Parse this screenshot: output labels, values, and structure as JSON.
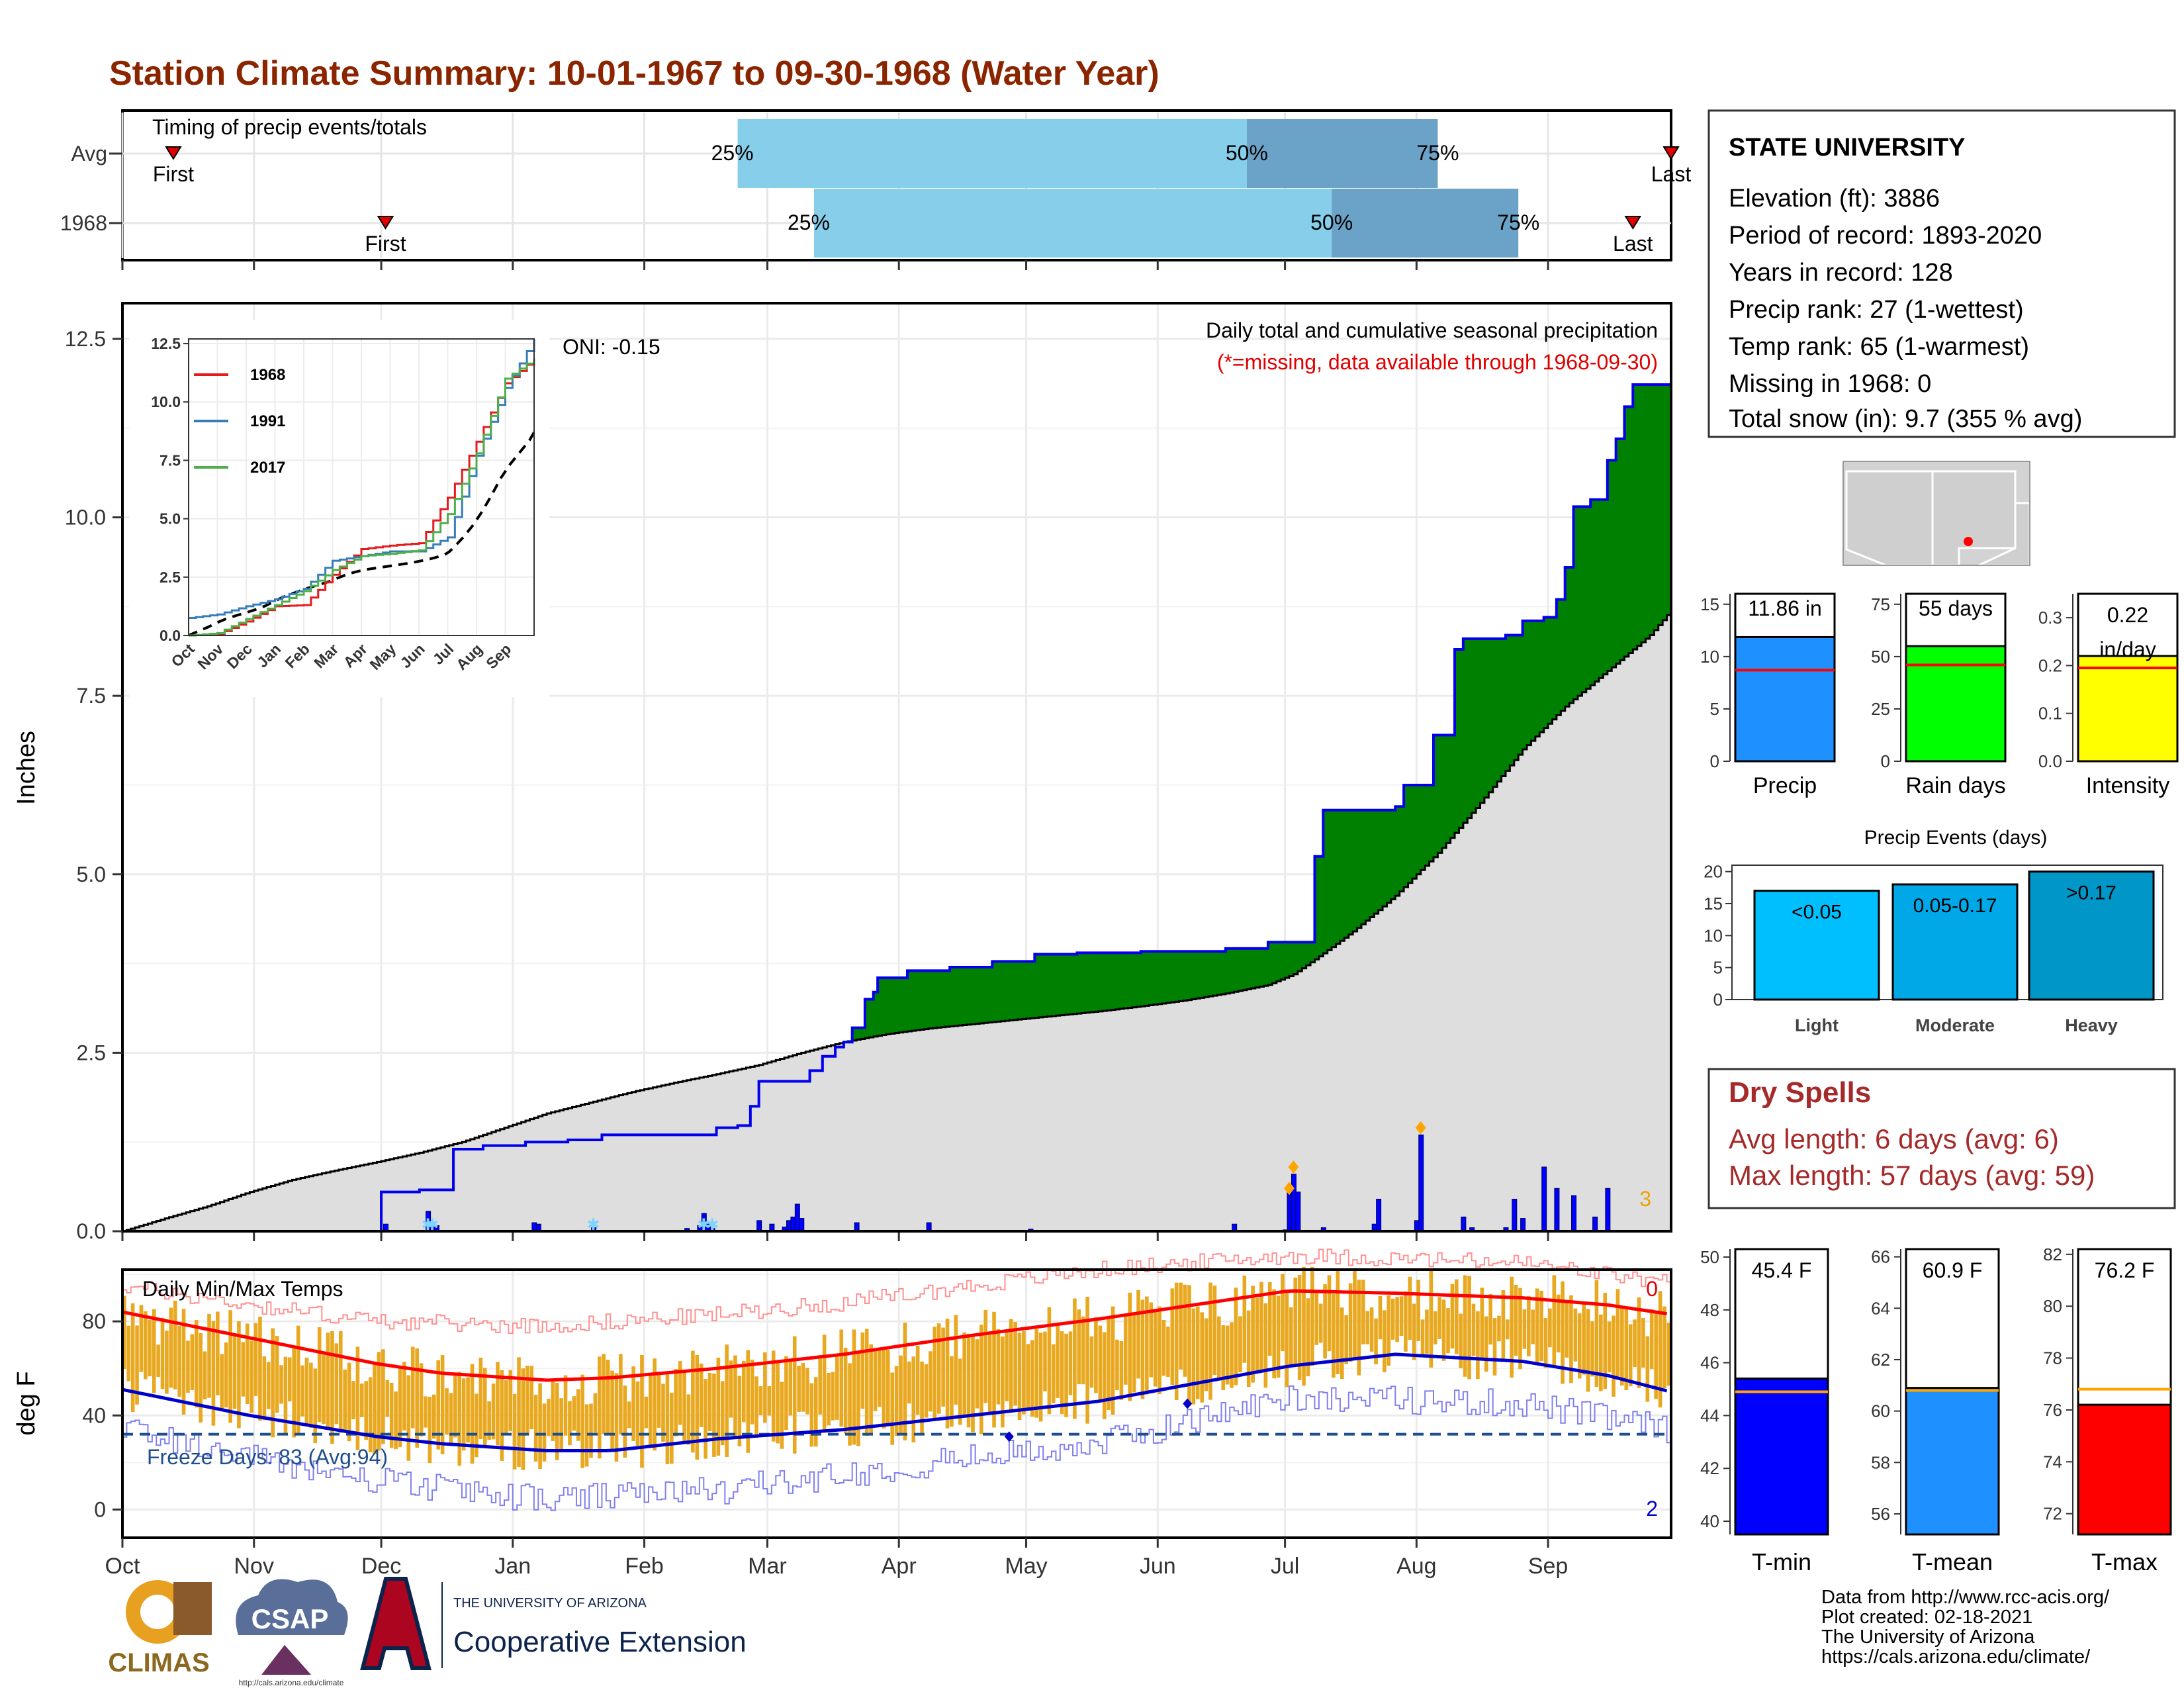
{
  "title": "Station Climate Summary: 10-01-1967 to 09-30-1968 (Water Year)",
  "colors": {
    "title": "#8b2500",
    "deficit": "#7f5200",
    "surplus": "#008000",
    "avg_fill": "#dedede",
    "daily_bars": "#0000ff",
    "temp_bars": "#e8a820",
    "tmax_line": "#ff0000",
    "tmin_line": "#0000cc",
    "timing_light": "#87ceeb",
    "timing_dark": "#6ba3c8",
    "dry_spells": "#a52a2a",
    "precip_bar": "#1e90ff",
    "rain_days_bar": "#00ff00",
    "intensity_bar": "#ffff00",
    "events_light": "#00bfff",
    "events_moderate": "#00a8e8",
    "events_heavy": "#0096c8",
    "tmin_bar": "#0000ff",
    "tmean_bar": "#1e90ff",
    "tmax_bar": "#ff0000",
    "avg_marker_precip": "#ff0000",
    "avg_marker_temp": "#ffa500"
  },
  "months": [
    "Oct",
    "Nov",
    "Dec",
    "Jan",
    "Feb",
    "Mar",
    "Apr",
    "May",
    "Jun",
    "Jul",
    "Aug",
    "Sep"
  ],
  "timing": {
    "caption": "Timing of precip events/totals",
    "rows": [
      {
        "label": "Avg",
        "first_day": 12,
        "p25_day": 145,
        "p50_day": 265,
        "p75_day": 310,
        "last_day": 365,
        "first_label": "First",
        "last_label": "Last",
        "p25_label": "25%",
        "p50_label": "50%",
        "p75_label": "75%"
      },
      {
        "label": "1968",
        "first_day": 62,
        "p25_day": 163,
        "p50_day": 285,
        "p75_day": 329,
        "last_day": 356,
        "first_label": "First",
        "last_label": "Last",
        "p25_label": "25%",
        "p50_label": "50%",
        "p75_label": "75%"
      }
    ]
  },
  "precip_panel": {
    "ylabel": "Inches",
    "y_ticks": [
      "0.0",
      "2.5",
      "5.0",
      "7.5",
      "10.0",
      "12.5"
    ],
    "ylim": [
      0,
      13
    ],
    "legend_title": "Daily total and cumulative seasonal precipitation",
    "legend_note": "(*=missing, data available through 1968-09-30)",
    "oni": "ONI: -0.15",
    "missing_count": "3"
  },
  "inset": {
    "y_ticks": [
      "0.0",
      "2.5",
      "5.0",
      "7.5",
      "10.0",
      "12.5"
    ],
    "x_ticks": [
      "Oct",
      "Nov",
      "Dec",
      "Jan",
      "Feb",
      "Mar",
      "Apr",
      "May",
      "Jun",
      "Jul",
      "Aug",
      "Sep"
    ],
    "legend": [
      {
        "label": "1968",
        "color": "#e41a1c"
      },
      {
        "label": "1991",
        "color": "#377eb8"
      },
      {
        "label": "2017",
        "color": "#4daf4a"
      }
    ]
  },
  "temp_panel": {
    "ylabel": "deg F",
    "caption": "Daily Min/Max Temps",
    "y_ticks": [
      "0",
      "40",
      "80"
    ],
    "ylim": [
      -12,
      102
    ],
    "freeze_label": "Freeze Days: 83 (Avg:94)",
    "freeze_line": 32,
    "record_high_count": "0",
    "record_low_count": "2"
  },
  "station": {
    "name": "STATE UNIVERSITY",
    "lines": [
      "Elevation (ft): 3886",
      "Period of record: 1893-2020",
      "Years in record: 128",
      "Precip rank: 27 (1-wettest)",
      "Temp rank: 65 (1-warmest)",
      "Missing in 1968: 0",
      "Total snow (in): 9.7 (355 % avg)"
    ]
  },
  "summary_bars": [
    {
      "label": "Precip",
      "value": 11.86,
      "avg": 8.7,
      "value_label": "11.86 in",
      "ylim": [
        0,
        16
      ],
      "ticks": [
        "0",
        "5",
        "10",
        "15"
      ],
      "tick_vals": [
        0,
        5,
        10,
        15
      ]
    },
    {
      "label": "Rain days",
      "value": 55,
      "avg": 46,
      "value_label": "55 days",
      "ylim": [
        0,
        80
      ],
      "ticks": [
        "0",
        "25",
        "50",
        "75"
      ],
      "tick_vals": [
        0,
        25,
        50,
        75
      ]
    },
    {
      "label": "Intensity",
      "value": 0.22,
      "avg": 0.195,
      "value_label": "0.22 in/day",
      "ylim": [
        0,
        0.35
      ],
      "ticks": [
        "0.0",
        "0.1",
        "0.2",
        "0.3"
      ],
      "tick_vals": [
        0,
        0.1,
        0.2,
        0.3
      ]
    }
  ],
  "events": {
    "title": "Precip Events (days)",
    "ylim": [
      0,
      21
    ],
    "ticks": [
      "0",
      "5",
      "10",
      "15",
      "20"
    ],
    "bars": [
      {
        "label": "Light",
        "value": 17,
        "value_label": "<0.05"
      },
      {
        "label": "Moderate",
        "value": 18,
        "value_label": "0.05-0.17"
      },
      {
        "label": "Heavy",
        "value": 20,
        "value_label": ">0.17"
      }
    ]
  },
  "dry_spells": {
    "title": "Dry Spells",
    "avg_line": "Avg length: 6 days (avg: 6)",
    "max_line": "Max length: 57 days (avg: 59)"
  },
  "temp_bars": [
    {
      "label": "T-min",
      "value": 45.4,
      "avg": 44.9,
      "value_label": "45.4 F",
      "ylim": [
        39.5,
        50.3
      ],
      "ticks": [
        "40",
        "42",
        "44",
        "46",
        "48",
        "50"
      ],
      "tick_vals": [
        40,
        42,
        44,
        46,
        48,
        50
      ]
    },
    {
      "label": "T-mean",
      "value": 60.9,
      "avg": 60.8,
      "value_label": "60.9 F",
      "ylim": [
        55.2,
        66.3
      ],
      "ticks": [
        "56",
        "58",
        "60",
        "62",
        "64",
        "66"
      ],
      "tick_vals": [
        56,
        58,
        60,
        62,
        64,
        66
      ]
    },
    {
      "label": "T-max",
      "value": 76.2,
      "avg": 76.8,
      "value_label": "76.2 F",
      "ylim": [
        71.2,
        82.2
      ],
      "ticks": [
        "72",
        "74",
        "76",
        "78",
        "80",
        "82"
      ],
      "tick_vals": [
        72,
        74,
        76,
        78,
        80,
        82
      ]
    }
  ],
  "footer": {
    "lines": [
      "Data from http://www.rcc-acis.org/",
      "Plot created: 02-18-2021",
      "The University of Arizona",
      "https://cals.arizona.edu/climate/"
    ],
    "climas": "CLIMAS",
    "csap": "CSAP",
    "csap_url": "http://cals.arizona.edu/climate",
    "ua_top": "THE UNIVERSITY OF ARIZONA",
    "ua_bottom": "Cooperative Extension"
  },
  "chart_data": [
    {
      "type": "area",
      "name": "cumulative precip",
      "x_unit": "day of water year (0 = Oct 1)",
      "y_unit": "inches",
      "observed_cumulative": [
        [
          0,
          0
        ],
        [
          61,
          0.55
        ],
        [
          70,
          0.58
        ],
        [
          78,
          1.15
        ],
        [
          85,
          1.2
        ],
        [
          95,
          1.25
        ],
        [
          105,
          1.28
        ],
        [
          113,
          1.35
        ],
        [
          125,
          1.35
        ],
        [
          140,
          1.45
        ],
        [
          145,
          1.48
        ],
        [
          148,
          1.75
        ],
        [
          150,
          2.1
        ],
        [
          162,
          2.25
        ],
        [
          165,
          2.45
        ],
        [
          168,
          2.58
        ],
        [
          170,
          2.65
        ],
        [
          172,
          2.85
        ],
        [
          175,
          3.25
        ],
        [
          177,
          3.35
        ],
        [
          178,
          3.55
        ],
        [
          185,
          3.65
        ],
        [
          195,
          3.7
        ],
        [
          205,
          3.78
        ],
        [
          215,
          3.88
        ],
        [
          225,
          3.9
        ],
        [
          240,
          3.92
        ],
        [
          260,
          3.96
        ],
        [
          270,
          4.05
        ],
        [
          276,
          4.05
        ],
        [
          281,
          5.25
        ],
        [
          283,
          5.9
        ],
        [
          290,
          5.9
        ],
        [
          300,
          5.95
        ],
        [
          302,
          6.25
        ],
        [
          309,
          6.95
        ],
        [
          314,
          8.15
        ],
        [
          316,
          8.3
        ],
        [
          322,
          8.3
        ],
        [
          326,
          8.35
        ],
        [
          330,
          8.55
        ],
        [
          335,
          8.6
        ],
        [
          338,
          8.85
        ],
        [
          340,
          9.3
        ],
        [
          342,
          10.15
        ],
        [
          346,
          10.25
        ],
        [
          350,
          10.8
        ],
        [
          352,
          11.1
        ],
        [
          354,
          11.55
        ],
        [
          356,
          11.86
        ],
        [
          365,
          11.86
        ]
      ],
      "avg_cumulative": [
        [
          0,
          0
        ],
        [
          10,
          0.18
        ],
        [
          20,
          0.35
        ],
        [
          30,
          0.55
        ],
        [
          40,
          0.72
        ],
        [
          50,
          0.85
        ],
        [
          60,
          0.97
        ],
        [
          70,
          1.1
        ],
        [
          80,
          1.25
        ],
        [
          90,
          1.45
        ],
        [
          100,
          1.65
        ],
        [
          110,
          1.8
        ],
        [
          120,
          1.95
        ],
        [
          130,
          2.08
        ],
        [
          140,
          2.2
        ],
        [
          150,
          2.33
        ],
        [
          160,
          2.5
        ],
        [
          170,
          2.65
        ],
        [
          180,
          2.76
        ],
        [
          190,
          2.84
        ],
        [
          200,
          2.9
        ],
        [
          210,
          2.96
        ],
        [
          220,
          3.02
        ],
        [
          230,
          3.08
        ],
        [
          240,
          3.15
        ],
        [
          250,
          3.23
        ],
        [
          260,
          3.33
        ],
        [
          270,
          3.45
        ],
        [
          276,
          3.6
        ],
        [
          282,
          3.85
        ],
        [
          290,
          4.2
        ],
        [
          300,
          4.7
        ],
        [
          310,
          5.3
        ],
        [
          320,
          6.0
        ],
        [
          330,
          6.75
        ],
        [
          340,
          7.35
        ],
        [
          350,
          7.85
        ],
        [
          360,
          8.35
        ],
        [
          365,
          8.7
        ]
      ],
      "daily": [
        [
          62,
          0.1
        ],
        [
          72,
          0.28
        ],
        [
          73,
          0.12
        ],
        [
          74,
          0.08
        ],
        [
          97,
          0.12
        ],
        [
          98,
          0.1
        ],
        [
          111,
          0.05
        ],
        [
          133,
          0.04
        ],
        [
          136,
          0.08
        ],
        [
          137,
          0.25
        ],
        [
          138,
          0.1
        ],
        [
          139,
          0.04
        ],
        [
          150,
          0.15
        ],
        [
          153,
          0.1
        ],
        [
          156,
          0.06
        ],
        [
          157,
          0.15
        ],
        [
          158,
          0.2
        ],
        [
          159,
          0.38
        ],
        [
          160,
          0.18
        ],
        [
          173,
          0.12
        ],
        [
          190,
          0.12
        ],
        [
          214,
          0.03
        ],
        [
          262,
          0.1
        ],
        [
          274,
          0.02
        ],
        [
          275,
          0.6
        ],
        [
          276,
          0.8
        ],
        [
          277,
          0.55
        ],
        [
          283,
          0.05
        ],
        [
          295,
          0.1
        ],
        [
          296,
          0.45
        ],
        [
          305,
          0.15
        ],
        [
          306,
          1.35
        ],
        [
          316,
          0.2
        ],
        [
          318,
          0.05
        ],
        [
          326,
          0.05
        ],
        [
          328,
          0.45
        ],
        [
          330,
          0.18
        ],
        [
          335,
          0.9
        ],
        [
          338,
          0.6
        ],
        [
          342,
          0.5
        ],
        [
          347,
          0.2
        ],
        [
          350,
          0.6
        ]
      ]
    },
    {
      "type": "line",
      "name": "inset cumulative comparison",
      "x": [
        "Oct",
        "Nov",
        "Dec",
        "Jan",
        "Feb",
        "Mar",
        "Apr",
        "May",
        "Jun",
        "Jul",
        "Aug",
        "Sep",
        "end"
      ],
      "series": [
        {
          "name": "1968",
          "values": [
            0,
            0.05,
            0.6,
            1.25,
            1.3,
            2.6,
            3.7,
            3.85,
            3.95,
            5.9,
            8.3,
            10.8,
            11.86
          ]
        },
        {
          "name": "1991",
          "values": [
            0.75,
            0.9,
            1.25,
            1.55,
            2.0,
            3.2,
            3.4,
            3.6,
            3.6,
            4.2,
            7.7,
            10.6,
            12.7
          ]
        },
        {
          "name": "2017",
          "values": [
            0,
            0.1,
            0.7,
            1.3,
            1.9,
            2.8,
            3.4,
            3.5,
            3.65,
            5.2,
            7.8,
            11.0,
            11.86
          ]
        }
      ]
    },
    {
      "type": "line",
      "name": "daily temperature climatology",
      "x_unit": "day of water year",
      "y_unit": "deg F",
      "series": [
        {
          "name": "avg max",
          "points": [
            [
              0,
              84
            ],
            [
              30,
              73
            ],
            [
              60,
              62
            ],
            [
              75,
              58
            ],
            [
              100,
              55
            ],
            [
              115,
              56
            ],
            [
              140,
              60
            ],
            [
              170,
              66
            ],
            [
              200,
              74
            ],
            [
              230,
              81
            ],
            [
              260,
              89
            ],
            [
              275,
              93
            ],
            [
              300,
              92
            ],
            [
              330,
              90
            ],
            [
              350,
              87
            ],
            [
              365,
              83
            ]
          ]
        },
        {
          "name": "avg min",
          "points": [
            [
              0,
              51
            ],
            [
              30,
              40
            ],
            [
              60,
              31
            ],
            [
              75,
              28
            ],
            [
              100,
              25
            ],
            [
              115,
              25
            ],
            [
              140,
              30
            ],
            [
              170,
              34
            ],
            [
              200,
              40
            ],
            [
              230,
              46
            ],
            [
              260,
              56
            ],
            [
              275,
              61
            ],
            [
              300,
              66
            ],
            [
              330,
              63
            ],
            [
              350,
              57
            ],
            [
              365,
              50
            ]
          ]
        },
        {
          "name": "record high",
          "points": [
            [
              0,
              95
            ],
            [
              30,
              87
            ],
            [
              60,
              80
            ],
            [
              100,
              78
            ],
            [
              140,
              83
            ],
            [
              170,
              88
            ],
            [
              200,
              95
            ],
            [
              230,
              102
            ],
            [
              275,
              108
            ],
            [
              330,
              105
            ],
            [
              365,
              96
            ]
          ]
        },
        {
          "name": "record low",
          "points": [
            [
              0,
              35
            ],
            [
              30,
              22
            ],
            [
              60,
              12
            ],
            [
              100,
              4
            ],
            [
              140,
              8
            ],
            [
              170,
              15
            ],
            [
              200,
              22
            ],
            [
              230,
              28
            ],
            [
              275,
              48
            ],
            [
              330,
              45
            ],
            [
              365,
              34
            ]
          ]
        }
      ]
    },
    {
      "type": "bar",
      "name": "annual summary",
      "categories": [
        "Precip",
        "Rain days",
        "Intensity",
        "T-min",
        "T-mean",
        "T-max"
      ],
      "values": [
        11.86,
        55,
        0.22,
        45.4,
        60.9,
        76.2
      ]
    },
    {
      "type": "bar",
      "name": "Precip Events (days)",
      "categories": [
        "Light",
        "Moderate",
        "Heavy"
      ],
      "values": [
        17,
        18,
        20
      ]
    }
  ]
}
